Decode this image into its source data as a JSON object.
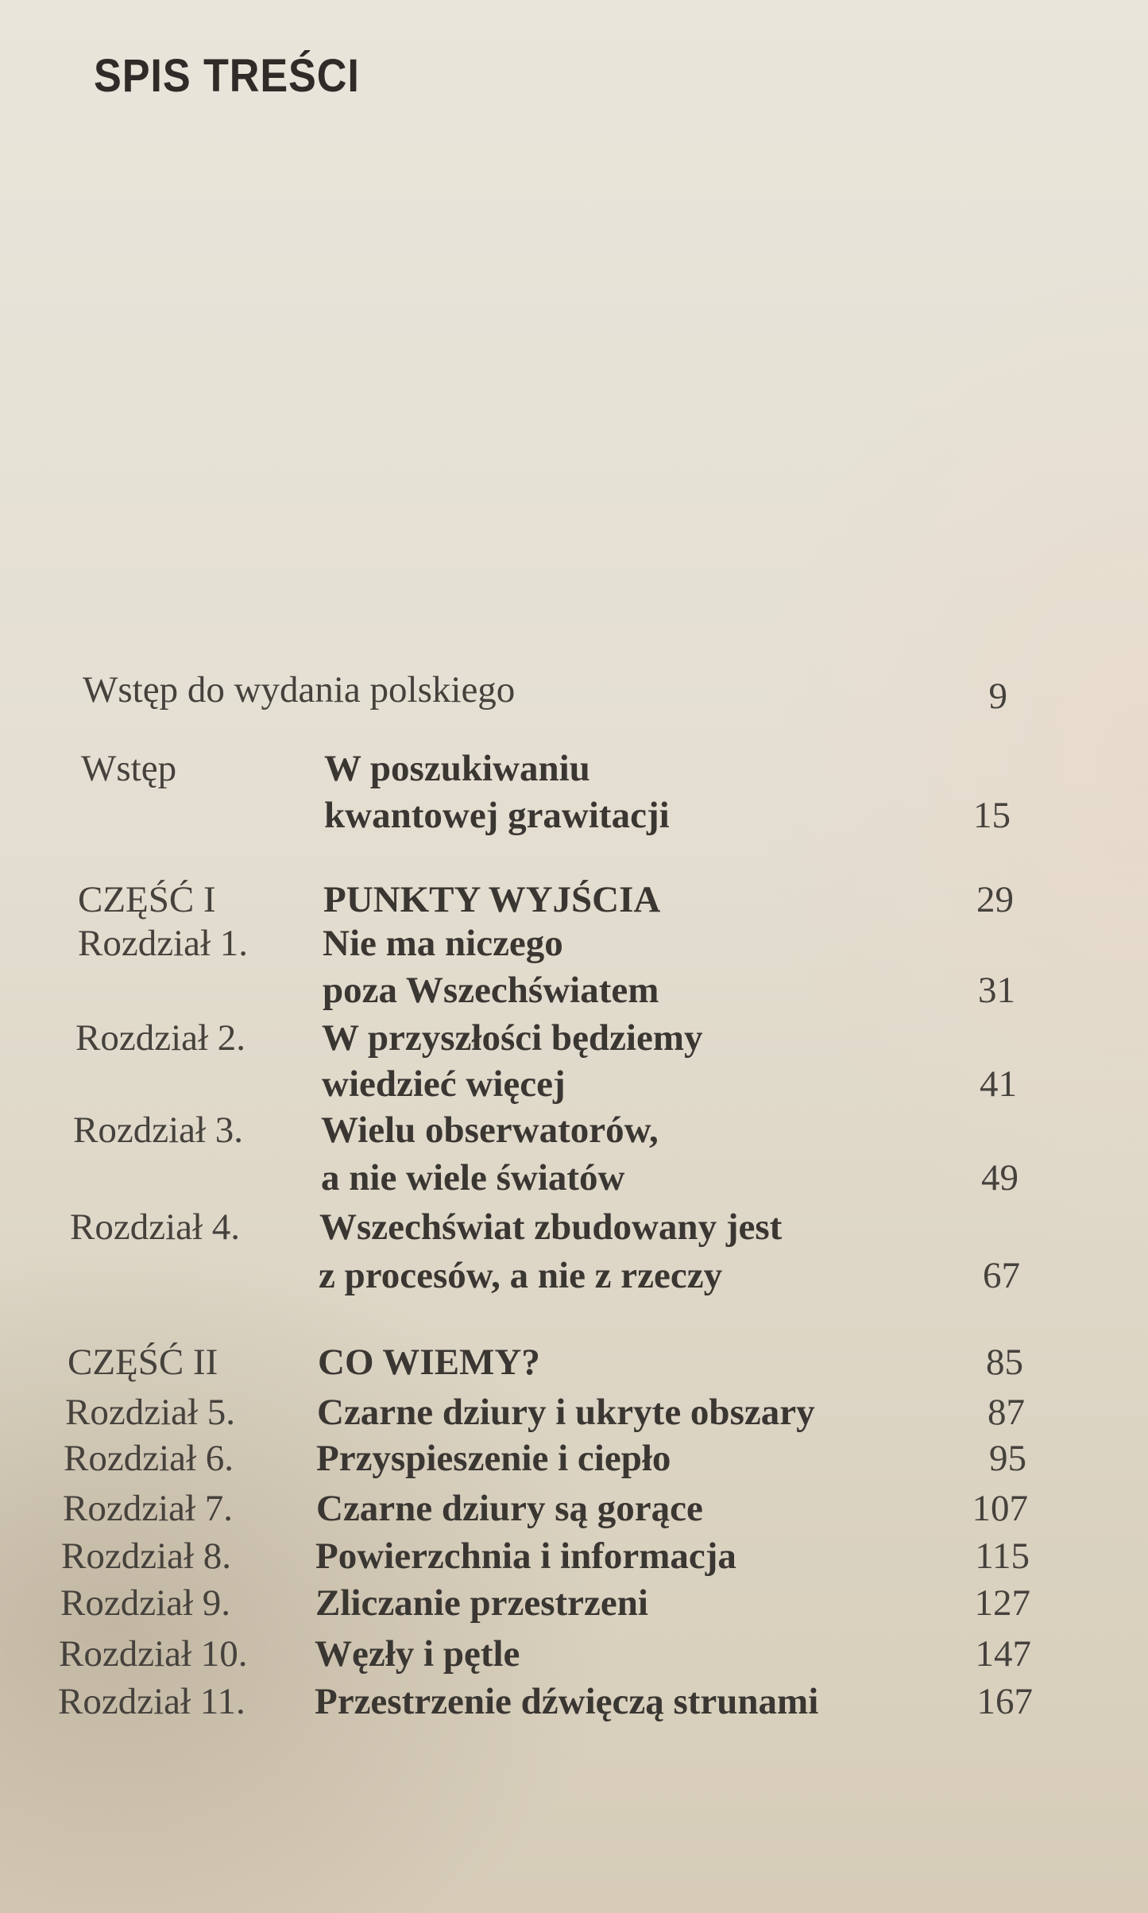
{
  "heading": "SPIS TREŚCI",
  "entries": [
    {
      "label": "Wstęp do wydania polskiego",
      "title": "",
      "title_line2": "",
      "page": "9"
    },
    {
      "label": "Wstęp",
      "title": "W poszukiwaniu",
      "title_line2": "kwantowej grawitacji",
      "page": "15"
    },
    {
      "label": "CZĘŚĆ I",
      "title": "PUNKTY WYJŚCIA",
      "title_line2": "",
      "page": "29"
    },
    {
      "label": "Rozdział 1.",
      "title": "Nie ma niczego",
      "title_line2": "poza Wszechświatem",
      "page": "31"
    },
    {
      "label": "Rozdział 2.",
      "title": "W przyszłości będziemy",
      "title_line2": "wiedzieć więcej",
      "page": "41"
    },
    {
      "label": "Rozdział 3.",
      "title": "Wielu obserwatorów,",
      "title_line2": "a nie wiele światów",
      "page": "49"
    },
    {
      "label": "Rozdział 4.",
      "title": "Wszechświat zbudowany jest",
      "title_line2": "z procesów, a nie z rzeczy",
      "page": "67"
    },
    {
      "label": "CZĘŚĆ II",
      "title": "CO WIEMY?",
      "title_line2": "",
      "page": "85"
    },
    {
      "label": "Rozdział 5.",
      "title": "Czarne dziury i ukryte obszary",
      "title_line2": "",
      "page": "87"
    },
    {
      "label": "Rozdział 6.",
      "title": "Przyspieszenie i ciepło",
      "title_line2": "",
      "page": "95"
    },
    {
      "label": "Rozdział 7.",
      "title": "Czarne dziury są gorące",
      "title_line2": "",
      "page": "107"
    },
    {
      "label": "Rozdział 8.",
      "title": "Powierzchnia i informacja",
      "title_line2": "",
      "page": "115"
    },
    {
      "label": "Rozdział 9.",
      "title": "Zliczanie przestrzeni",
      "title_line2": "",
      "page": "127"
    },
    {
      "label": "Rozdział 10.",
      "title": "Węzły i pętle",
      "title_line2": "",
      "page": "147"
    },
    {
      "label": "Rozdział 11.",
      "title": "Przestrzenie dźwięczą strunami",
      "title_line2": "",
      "page": "167"
    }
  ]
}
